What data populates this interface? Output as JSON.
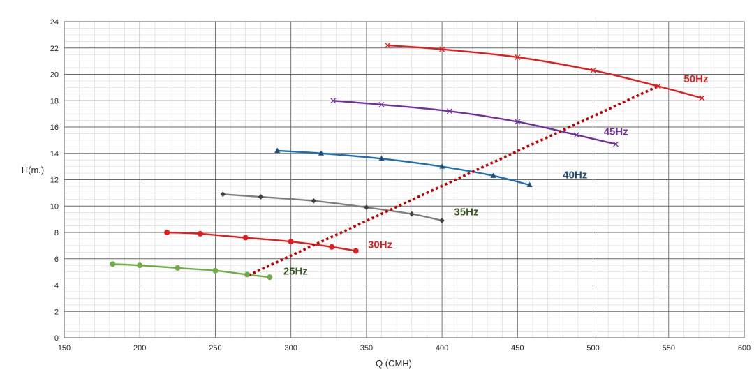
{
  "chart_data": {
    "type": "line",
    "xlabel": "Q (CMH)",
    "ylabel": "H(m.)",
    "xlim": [
      150,
      600
    ],
    "ylim": [
      0,
      24
    ],
    "x_ticks": [
      150,
      200,
      250,
      300,
      350,
      400,
      450,
      500,
      550,
      600
    ],
    "y_ticks": [
      0,
      2,
      4,
      6,
      8,
      10,
      12,
      14,
      16,
      18,
      20,
      22,
      24
    ],
    "grid": true,
    "series": [
      {
        "name": "50Hz",
        "color": "#e31c1c",
        "marker": "x",
        "dashed": false,
        "points": [
          [
            364,
            22.2
          ],
          [
            400,
            21.9
          ],
          [
            450,
            21.3
          ],
          [
            500,
            20.3
          ],
          [
            543,
            19.1
          ],
          [
            572,
            18.2
          ]
        ]
      },
      {
        "name": "45Hz",
        "color": "#7030a0",
        "marker": "x",
        "dashed": false,
        "points": [
          [
            328,
            18.0
          ],
          [
            360,
            17.7
          ],
          [
            405,
            17.2
          ],
          [
            450,
            16.4
          ],
          [
            489,
            15.4
          ],
          [
            515,
            14.7
          ]
        ]
      },
      {
        "name": "40Hz",
        "color": "#1f6fb4",
        "marker": "triangle",
        "dashed": false,
        "points": [
          [
            291,
            14.2
          ],
          [
            320,
            14.0
          ],
          [
            360,
            13.6
          ],
          [
            400,
            13.0
          ],
          [
            434,
            12.3
          ],
          [
            458,
            11.6
          ]
        ]
      },
      {
        "name": "35Hz",
        "color": "#7f7f7f",
        "marker": "diamond",
        "dashed": false,
        "points": [
          [
            255,
            10.9
          ],
          [
            280,
            10.7
          ],
          [
            315,
            10.4
          ],
          [
            350,
            9.9
          ],
          [
            380,
            9.4
          ],
          [
            400,
            8.9
          ]
        ]
      },
      {
        "name": "30Hz",
        "color": "#e31c1c",
        "marker": "circle",
        "dashed": false,
        "points": [
          [
            218,
            8.0
          ],
          [
            240,
            7.9
          ],
          [
            270,
            7.6
          ],
          [
            300,
            7.3
          ],
          [
            327,
            6.9
          ],
          [
            343,
            6.6
          ]
        ]
      },
      {
        "name": "25Hz",
        "color": "#70ad47",
        "marker": "circle",
        "dashed": false,
        "points": [
          [
            182,
            5.6
          ],
          [
            200,
            5.5
          ],
          [
            225,
            5.3
          ],
          [
            250,
            5.1
          ],
          [
            271,
            4.8
          ],
          [
            286,
            4.6
          ]
        ]
      },
      {
        "name": "",
        "color": "#c00000",
        "marker": "none",
        "dashed": true,
        "points": [
          [
            272,
            4.75
          ],
          [
            543,
            19.1
          ]
        ]
      }
    ],
    "annotations": [
      {
        "text": "50Hz",
        "color": "#e31c1c",
        "x": 560,
        "y": 19.4
      },
      {
        "text": "45Hz",
        "color": "#7030a0",
        "x": 507,
        "y": 15.4
      },
      {
        "text": "40Hz",
        "color": "#1f4e79",
        "x": 480,
        "y": 12.1
      },
      {
        "text": "35Hz",
        "color": "#375623",
        "x": 408,
        "y": 9.3
      },
      {
        "text": "30Hz",
        "color": "#e31c1c",
        "x": 351,
        "y": 6.8
      },
      {
        "text": "25Hz",
        "color": "#375623",
        "x": 295,
        "y": 4.8
      }
    ]
  }
}
